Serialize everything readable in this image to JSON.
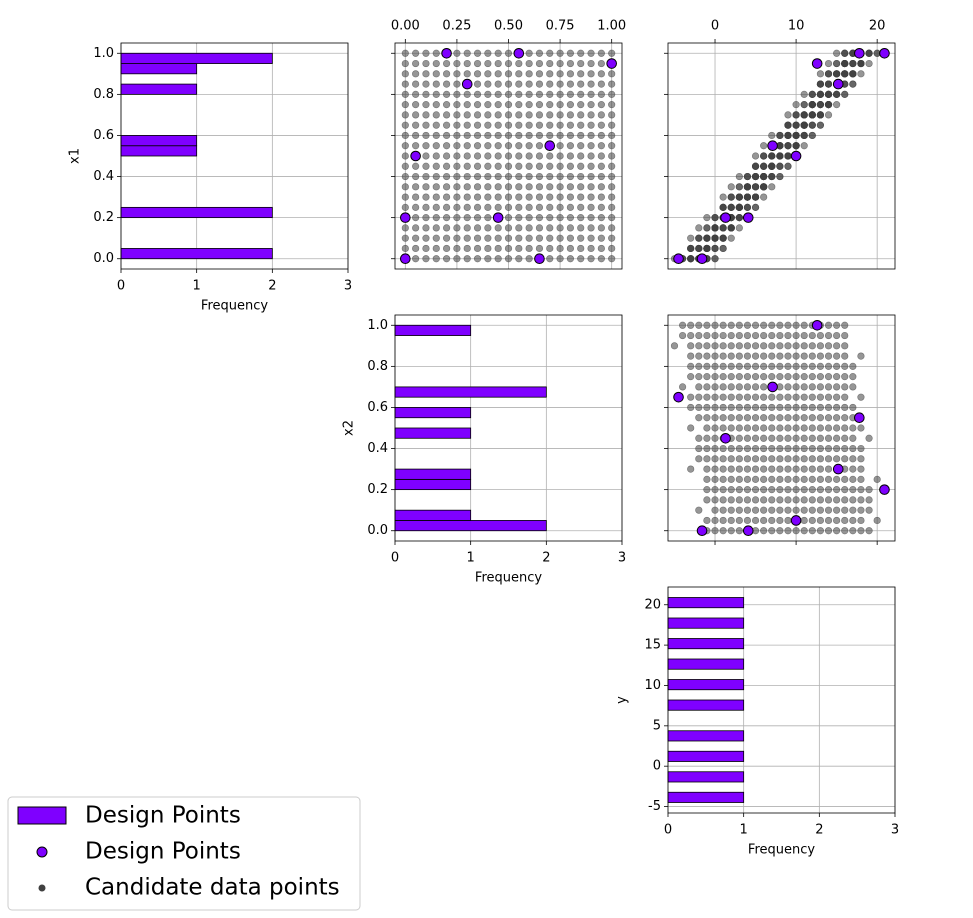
{
  "chart_data": {
    "type": "pairplot",
    "grid": true,
    "variables": [
      {
        "name": "x1",
        "lim": [
          -0.05,
          1.05
        ],
        "ticks": [
          {
            "value": 0,
            "label": "0.0"
          },
          0.2,
          0.4,
          0.6,
          0.8,
          {
            "value": 1,
            "label": "1.0"
          }
        ]
      },
      {
        "name": "x2",
        "lim": [
          -0.05,
          1.05
        ],
        "ticks": [
          {
            "value": 0,
            "label": "0.0"
          },
          0.2,
          0.4,
          0.6,
          0.8,
          {
            "value": 1,
            "label": "1.0"
          }
        ],
        "top_ticks": [
          {
            "value": 0,
            "label": "0.00"
          },
          0.25,
          {
            "value": 0.5,
            "label": "0.50"
          },
          0.75,
          {
            "value": 1,
            "label": "1.00"
          }
        ]
      },
      {
        "name": "y",
        "lim": [
          -5.8,
          22.2
        ],
        "ticks": [
          -5,
          0,
          5,
          10,
          15,
          20
        ],
        "top_ticks": [
          0,
          10,
          20
        ]
      }
    ],
    "hist_xlabel": "Frequency",
    "hist_xlim": [
      0,
      3
    ],
    "hist_xticks": [
      0,
      1,
      2,
      3
    ],
    "histograms": [
      {
        "bins": [
          0,
          0.05,
          0.1,
          0.15,
          0.2,
          0.25,
          0.3,
          0.35,
          0.4,
          0.45,
          0.5,
          0.55,
          0.6,
          0.65,
          0.7,
          0.75,
          0.8,
          0.85,
          0.9,
          0.95,
          1
        ],
        "counts": [
          2,
          0,
          0,
          0,
          2,
          0,
          0,
          0,
          0,
          0,
          1,
          1,
          0,
          0,
          0,
          0,
          1,
          0,
          1,
          2
        ]
      },
      {
        "bins": [
          0,
          0.05,
          0.1,
          0.15,
          0.2,
          0.25,
          0.3,
          0.35,
          0.4,
          0.45,
          0.5,
          0.55,
          0.6,
          0.65,
          0.7,
          0.75,
          0.8,
          0.85,
          0.9,
          0.95,
          1
        ],
        "counts": [
          2,
          1,
          0,
          0,
          1,
          1,
          0,
          0,
          0,
          1,
          0,
          1,
          0,
          2,
          0,
          0,
          0,
          0,
          0,
          1
        ]
      },
      {
        "bins": [
          -4.5,
          -3.23,
          -1.96,
          -0.69,
          0.58,
          1.85,
          3.12,
          4.39,
          5.66,
          6.93,
          8.2,
          9.47,
          10.74,
          12.01,
          13.28,
          14.55,
          15.82,
          17.09,
          18.36,
          19.63,
          20.9
        ],
        "counts": [
          1,
          0,
          1,
          0,
          1,
          0,
          1,
          0,
          0,
          1,
          0,
          1,
          0,
          1,
          0,
          1,
          0,
          1,
          0,
          1
        ]
      }
    ],
    "design": {
      "name": "Design Points",
      "hist_name": "Design Points",
      "color": "#7f00ff",
      "x1": [
        1.0,
        1.0,
        0.95,
        0.85,
        0.55,
        0.5,
        0.2,
        0.2,
        0.0,
        0.0
      ],
      "x2": [
        0.2,
        0.55,
        1.0,
        0.3,
        0.7,
        0.05,
        0.45,
        0.0,
        0.65,
        0.0
      ],
      "y": [
        20.9,
        17.8,
        12.6,
        15.2,
        7.1,
        10.0,
        1.3,
        4.1,
        -4.5,
        -1.6
      ]
    },
    "candidates": {
      "name": "Candidate data points",
      "color": "#404040",
      "x1": [
        0,
        0.05,
        0.1,
        0.15,
        0.2,
        0.25,
        0.3,
        0.35,
        0.4,
        0.45,
        0.5,
        0.55,
        0.6,
        0.65,
        0.7,
        0.75,
        0.8,
        0.85,
        0.9,
        0.95,
        1
      ],
      "x2": [
        0,
        0.05,
        0.1,
        0.15,
        0.2,
        0.25,
        0.3,
        0.35,
        0.4,
        0.45,
        0.5,
        0.55,
        0.6,
        0.65,
        0.7,
        0.75,
        0.8,
        0.85,
        0.9,
        0.95,
        1
      ],
      "y": [
        [
          -1,
          0,
          -2,
          -1,
          -1,
          0,
          -3,
          -2,
          -2,
          -1,
          -3,
          -2,
          -3,
          -2,
          -4,
          -3,
          -3,
          -2,
          -5,
          -4,
          -4
        ],
        [
          1,
          -1,
          0,
          0,
          1,
          -1,
          -1,
          -1,
          0,
          -2,
          -1,
          -1,
          -1,
          -3,
          -2,
          -2,
          -1,
          -3,
          -3,
          -3,
          -2
        ],
        [
          0,
          1,
          1,
          2,
          0,
          1,
          0,
          1,
          -1,
          0,
          0,
          1,
          -2,
          -1,
          -1,
          0,
          -2,
          -1,
          -2,
          -1,
          -3
        ],
        [
          2,
          2,
          3,
          1,
          2,
          2,
          2,
          0,
          1,
          1,
          2,
          0,
          0,
          0,
          1,
          -1,
          0,
          0,
          0,
          -2,
          -1
        ],
        [
          3,
          4,
          2,
          3,
          3,
          4,
          1,
          2,
          2,
          3,
          1,
          2,
          1,
          2,
          0,
          1,
          1,
          2,
          -1,
          0,
          0
        ],
        [
          5,
          3,
          4,
          4,
          5,
          3,
          3,
          3,
          4,
          2,
          3,
          3,
          3,
          1,
          2,
          2,
          3,
          1,
          1,
          1,
          2
        ],
        [
          4,
          5,
          5,
          6,
          4,
          5,
          4,
          5,
          3,
          4,
          4,
          5,
          2,
          3,
          3,
          4,
          2,
          3,
          2,
          3,
          1
        ],
        [
          6,
          6,
          7,
          5,
          6,
          6,
          6,
          4,
          5,
          5,
          6,
          4,
          4,
          4,
          5,
          3,
          4,
          4,
          4,
          2,
          3
        ],
        [
          7,
          8,
          6,
          7,
          7,
          8,
          5,
          6,
          6,
          7,
          5,
          6,
          5,
          6,
          4,
          5,
          5,
          6,
          3,
          4,
          4
        ],
        [
          9,
          7,
          8,
          8,
          9,
          7,
          7,
          7,
          8,
          6,
          7,
          7,
          7,
          5,
          6,
          6,
          7,
          5,
          5,
          5,
          6
        ],
        [
          8,
          9,
          9,
          10,
          8,
          9,
          8,
          9,
          7,
          8,
          8,
          9,
          6,
          7,
          7,
          8,
          6,
          7,
          6,
          7,
          5
        ],
        [
          10,
          10,
          11,
          9,
          10,
          10,
          10,
          8,
          9,
          9,
          10,
          8,
          8,
          8,
          9,
          7,
          8,
          8,
          8,
          6,
          7
        ],
        [
          11,
          12,
          10,
          11,
          11,
          12,
          9,
          10,
          10,
          11,
          9,
          10,
          9,
          10,
          8,
          9,
          9,
          10,
          7,
          8,
          8
        ],
        [
          13,
          11,
          12,
          12,
          13,
          11,
          11,
          11,
          12,
          10,
          11,
          11,
          11,
          9,
          10,
          10,
          11,
          9,
          9,
          9,
          10
        ],
        [
          12,
          13,
          13,
          14,
          12,
          13,
          12,
          13,
          11,
          12,
          12,
          13,
          10,
          11,
          11,
          12,
          10,
          11,
          10,
          11,
          9
        ],
        [
          14,
          14,
          15,
          13,
          14,
          14,
          14,
          12,
          13,
          13,
          14,
          12,
          12,
          12,
          13,
          11,
          12,
          12,
          12,
          10,
          11
        ],
        [
          15,
          16,
          14,
          15,
          15,
          16,
          13,
          14,
          14,
          15,
          13,
          14,
          13,
          14,
          12,
          13,
          13,
          14,
          11,
          12,
          12
        ],
        [
          17,
          15,
          16,
          16,
          17,
          15,
          15,
          15,
          16,
          14,
          15,
          15,
          15,
          13,
          14,
          14,
          15,
          13,
          13,
          13,
          14
        ],
        [
          16,
          17,
          17,
          18,
          16,
          17,
          16,
          17,
          15,
          16,
          16,
          17,
          14,
          15,
          15,
          16,
          14,
          15,
          14,
          15,
          13
        ],
        [
          18,
          18,
          19,
          17,
          18,
          18,
          18,
          16,
          17,
          17,
          18,
          16,
          16,
          16,
          17,
          15,
          16,
          16,
          16,
          14,
          15
        ],
        [
          19,
          20,
          18,
          19,
          19,
          20,
          17,
          18,
          18,
          19,
          17,
          18,
          17,
          18,
          16,
          17,
          17,
          18,
          15,
          16,
          16
        ]
      ]
    }
  }
}
